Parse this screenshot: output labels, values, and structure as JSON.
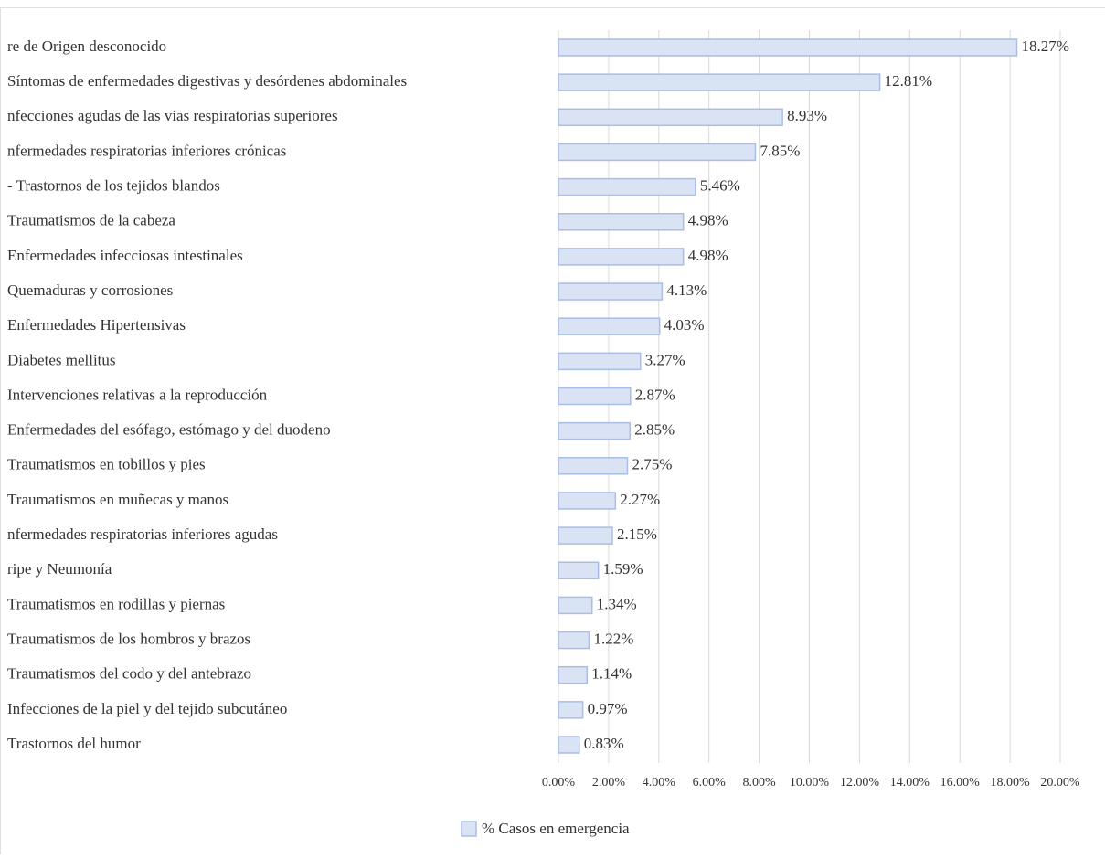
{
  "chart_data": {
    "type": "bar",
    "orientation": "horizontal",
    "categories": [
      "re de Origen desconocido",
      "Síntomas de enfermedades digestivas y desórdenes abdominales",
      "nfecciones agudas de las vias respiratorias superiores",
      "nfermedades respiratorias inferiores crónicas",
      "- Trastornos de los tejidos blandos",
      "Traumatismos de la cabeza",
      "Enfermedades infecciosas intestinales",
      "Quemaduras y corrosiones",
      "Enfermedades Hipertensivas",
      "Diabetes mellitus",
      "Intervenciones relativas a la reproducción",
      "Enfermedades del esófago, estómago y del duodeno",
      "Traumatismos en tobillos y pies",
      "Traumatismos en muñecas y manos",
      "nfermedades respiratorias inferiores agudas",
      "ripe y Neumonía",
      "Traumatismos en rodillas y piernas",
      "Traumatismos de los hombros y brazos",
      "Traumatismos del codo y del antebrazo",
      "Infecciones de la piel y del tejido subcutáneo",
      "Trastornos del humor"
    ],
    "series": [
      {
        "name": "% Casos en emergencia",
        "color": "#dae3f3",
        "values": [
          18.27,
          12.81,
          8.93,
          7.85,
          5.46,
          4.98,
          4.98,
          4.13,
          4.03,
          3.27,
          2.87,
          2.85,
          2.75,
          2.27,
          2.15,
          1.59,
          1.34,
          1.22,
          1.14,
          0.97,
          0.83
        ],
        "value_labels": [
          "18.27%",
          "12.81%",
          "8.93%",
          "7.85%",
          "5.46%",
          "4.98%",
          "4.98%",
          "4.13%",
          "4.03%",
          "3.27%",
          "2.87%",
          "2.85%",
          "2.75%",
          "2.27%",
          "2.15%",
          "1.59%",
          "1.34%",
          "1.22%",
          "1.14%",
          "0.97%",
          "0.83%"
        ]
      }
    ],
    "xlim": [
      0,
      20
    ],
    "xticks": [
      {
        "value": 0,
        "label": "0.00%"
      },
      {
        "value": 2,
        "label": "2.00%"
      },
      {
        "value": 4,
        "label": "4.00%"
      },
      {
        "value": 6,
        "label": "6.00%"
      },
      {
        "value": 8,
        "label": "8.00%"
      },
      {
        "value": 10,
        "label": "10.00%"
      },
      {
        "value": 12,
        "label": "12.00%"
      },
      {
        "value": 14,
        "label": "14.00%"
      },
      {
        "value": 16,
        "label": "16.00%"
      },
      {
        "value": 18,
        "label": "18.00%"
      },
      {
        "value": 20,
        "label": "20.00%"
      }
    ],
    "grid": true,
    "legend": "bottom"
  }
}
